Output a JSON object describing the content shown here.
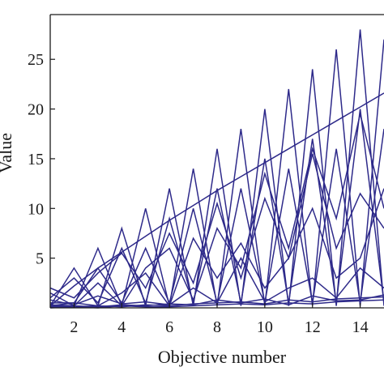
{
  "chart_data": {
    "type": "line",
    "title": "",
    "xlabel": "Objective number",
    "ylabel": "Value",
    "xlim": [
      1,
      15
    ],
    "ylim": [
      0,
      29.5
    ],
    "xticks": [
      2,
      4,
      6,
      8,
      10,
      12,
      14
    ],
    "yticks": [
      5,
      10,
      15,
      20,
      25
    ],
    "grid": false,
    "line_color": "#2e2a8a",
    "series": [
      {
        "x": [
          1,
          2,
          3,
          4,
          5,
          6,
          7,
          8,
          9,
          10,
          11,
          12,
          13,
          14,
          15
        ],
        "values": [
          0.2,
          2.2,
          4.0,
          5.6,
          7.2,
          8.8,
          10.3,
          11.8,
          13.2,
          14.6,
          16.0,
          17.4,
          18.8,
          20.2,
          21.6
        ]
      },
      {
        "x": [
          1,
          2,
          3,
          4,
          5,
          6,
          7,
          8,
          9,
          10,
          11,
          12,
          13,
          14,
          15
        ],
        "values": [
          0.2,
          4.0,
          0.2,
          8.0,
          0.2,
          12.0,
          0.2,
          16.0,
          0.2,
          20.0,
          0.2,
          24.0,
          0.2,
          28.0,
          0.2
        ]
      },
      {
        "x": [
          1,
          2,
          3,
          4,
          5,
          6,
          7,
          8,
          9,
          10,
          11,
          12,
          13,
          14,
          15
        ],
        "values": [
          0.2,
          0.2,
          6.0,
          0.2,
          10.0,
          0.2,
          14.0,
          0.2,
          18.0,
          0.2,
          22.0,
          0.2,
          26.0,
          0.2,
          27.0
        ]
      },
      {
        "x": [
          1,
          2,
          3,
          4,
          5,
          6,
          7,
          8,
          9,
          10,
          11,
          12,
          13,
          14,
          15
        ],
        "values": [
          1.0,
          3.0,
          0.5,
          6.0,
          0.5,
          9.0,
          0.5,
          12.0,
          0.5,
          15.0,
          0.5,
          17.0,
          0.5,
          20.0,
          0.5
        ]
      },
      {
        "x": [
          1,
          2,
          3,
          4,
          5,
          6,
          7,
          8,
          9,
          10,
          11,
          12,
          13,
          14,
          15
        ],
        "values": [
          0.5,
          0.5,
          4.0,
          0.5,
          6.0,
          0.5,
          10.0,
          0.5,
          12.0,
          0.5,
          14.0,
          0.5,
          16.0,
          0.5,
          18.0
        ]
      },
      {
        "x": [
          1,
          2,
          3,
          4,
          5,
          6,
          7,
          8,
          9,
          10,
          11,
          12,
          13,
          14,
          15
        ],
        "values": [
          2.0,
          1.0,
          3.5,
          5.5,
          2.0,
          7.5,
          2.5,
          10.5,
          3.0,
          11.0,
          5.0,
          15.5,
          6.0,
          11.5,
          8.0
        ]
      },
      {
        "x": [
          1,
          2,
          3,
          4,
          5,
          6,
          7,
          8,
          9,
          10,
          11,
          12,
          13,
          14,
          15
        ],
        "values": [
          1.5,
          0.2,
          2.5,
          0.2,
          4.0,
          6.0,
          0.8,
          8.0,
          4.0,
          13.5,
          6.0,
          16.0,
          9.0,
          19.5,
          10.0
        ]
      },
      {
        "x": [
          1,
          2,
          3,
          4,
          5,
          6,
          7,
          8,
          9,
          10,
          11,
          12,
          13,
          14,
          15
        ],
        "values": [
          0.2,
          0.5,
          0.2,
          1.5,
          3.5,
          0.2,
          7.0,
          3.0,
          6.5,
          2.0,
          5.0,
          10.0,
          3.0,
          5.0,
          12.0
        ]
      },
      {
        "x": [
          1,
          2,
          3,
          4,
          5,
          6,
          7,
          8,
          9,
          10,
          11,
          12,
          13,
          14,
          15
        ],
        "values": [
          0.8,
          0.3,
          1.2,
          0.4,
          0.6,
          0.3,
          2.0,
          0.5,
          5.0,
          0.6,
          2.0,
          3.0,
          1.0,
          4.0,
          2.0
        ]
      },
      {
        "x": [
          1,
          2,
          3,
          4,
          5,
          6,
          7,
          8,
          9,
          10,
          11,
          12,
          13,
          14,
          15
        ],
        "values": [
          0.1,
          0.1,
          0.2,
          0.1,
          0.3,
          0.2,
          0.4,
          0.5,
          0.6,
          0.4,
          0.8,
          0.6,
          0.9,
          1.0,
          1.1
        ]
      },
      {
        "x": [
          1,
          2,
          3,
          4,
          5,
          6,
          7,
          8,
          9,
          10,
          11,
          12,
          13,
          14,
          15
        ],
        "values": [
          0.3,
          0.2,
          0.1,
          0.3,
          0.2,
          0.4,
          0.3,
          0.8,
          0.5,
          0.9,
          0.3,
          1.2,
          0.7,
          0.8,
          1.3
        ]
      },
      {
        "x": [
          1,
          2,
          3,
          4,
          5,
          6,
          7,
          8,
          9,
          10,
          11,
          12,
          13,
          14,
          15
        ],
        "values": [
          0.0,
          0.1,
          0.0,
          0.2,
          0.1,
          0.1,
          0.2,
          0.3,
          0.4,
          0.3,
          0.5,
          0.4,
          0.6,
          0.7,
          0.8
        ]
      }
    ]
  }
}
